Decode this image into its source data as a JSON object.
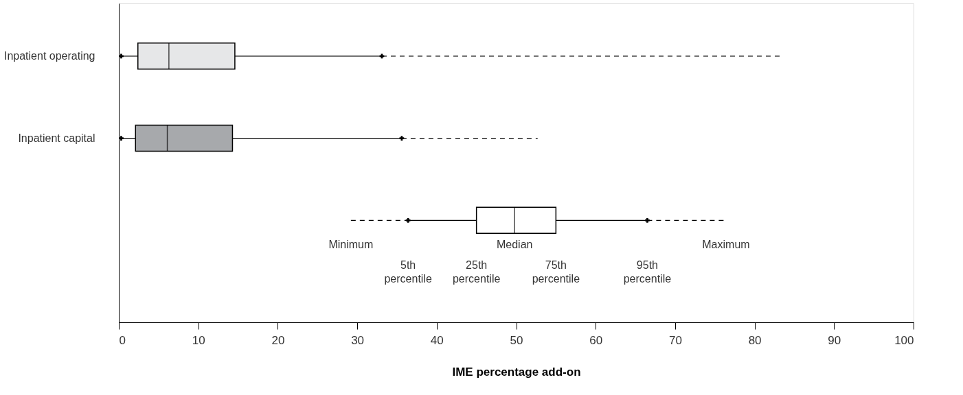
{
  "chart_data": {
    "type": "box",
    "orientation": "horizontal",
    "categories": [
      "Inpatient operating",
      "Inpatient capital",
      null
    ],
    "colors": [
      "#e6e7e8",
      "#a7a9ac",
      "#ffffff"
    ],
    "boxes": [
      {
        "low": 0.3,
        "q1": 2.4,
        "median": 6.3,
        "q3": 14.6,
        "high": 83.4
      },
      {
        "low": 0.3,
        "q1": 2.1,
        "median": 6.1,
        "q3": 14.3,
        "high": 52.7
      },
      {
        "low": 29.2,
        "q1": 45.0,
        "median": 49.8,
        "q3": 55.0,
        "high": 76.4
      }
    ],
    "series": [
      {
        "type": "scatter",
        "marker": "cross",
        "color": "#000000",
        "values": [
          0.3,
          0.3,
          36.4
        ]
      },
      {
        "type": "scatter",
        "marker": "cross",
        "color": "#000000",
        "values": [
          33.1,
          35.6,
          66.5
        ]
      }
    ],
    "xlabel": "IME percentage add-on",
    "xlim": [
      0,
      100
    ],
    "xticks": [
      0,
      10,
      20,
      30,
      40,
      50,
      60,
      70,
      80,
      90,
      100
    ],
    "grid": false,
    "annotations": [
      "Minimum",
      "5th\npercentile",
      "25th\npercentile",
      "Median",
      "75th\npercentile",
      "95th\npercentile",
      "Maximum"
    ]
  }
}
